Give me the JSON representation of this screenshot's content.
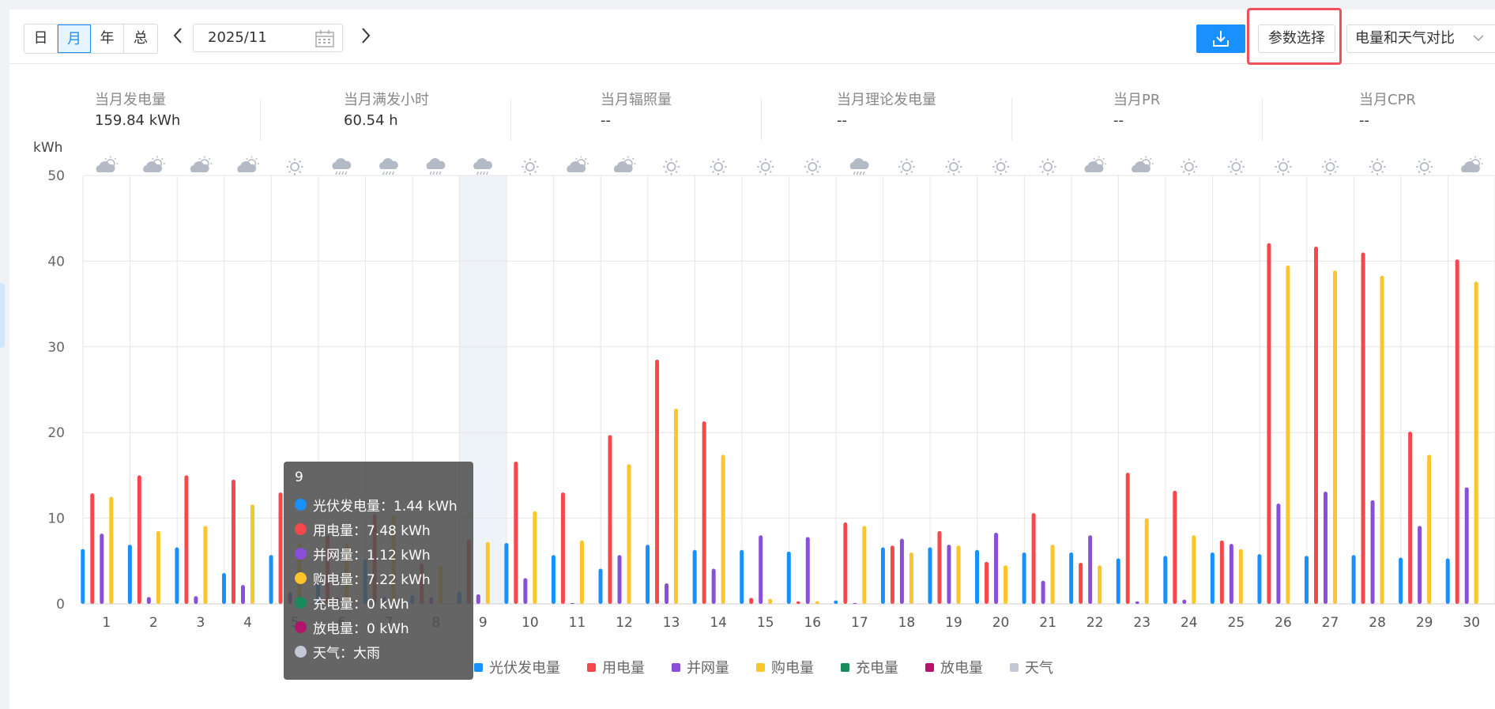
{
  "toolbar": {
    "period_tabs": [
      "日",
      "月",
      "年",
      "总"
    ],
    "active_tab": "月",
    "date_value": "2025/11",
    "param_button": "参数选择",
    "compare_select": "电量和天气对比"
  },
  "stats": [
    {
      "label": "当月发电量",
      "value": "159.84 kWh"
    },
    {
      "label": "当月满发小时",
      "value": "60.54 h"
    },
    {
      "label": "当月辐照量",
      "value": "--"
    },
    {
      "label": "当月理论发电量",
      "value": "--"
    },
    {
      "label": "当月PR",
      "value": "--"
    },
    {
      "label": "当月CPR",
      "value": "--"
    }
  ],
  "tooltip": {
    "title": "9",
    "rows": [
      {
        "text": "光伏发电量：1.44 kWh",
        "color": "#1890ff"
      },
      {
        "text": "用电量：7.48 kWh",
        "color": "#f5484d"
      },
      {
        "text": "并网量：1.12 kWh",
        "color": "#8a4fd8"
      },
      {
        "text": "购电量：7.22 kWh",
        "color": "#fbc52b"
      },
      {
        "text": "充电量：0 kWh",
        "color": "#1a8a5c"
      },
      {
        "text": "放电量：0 kWh",
        "color": "#b3136b"
      },
      {
        "text": "天气：大雨",
        "color": "#c4c8d4"
      }
    ]
  },
  "chart_data": {
    "type": "bar",
    "ylabel": "kWh",
    "ylim": [
      0,
      50
    ],
    "yticks": [
      0,
      10,
      20,
      30,
      40,
      50
    ],
    "grid": true,
    "legend_position": "bottom",
    "highlighted_category": "9",
    "categories": [
      "1",
      "2",
      "3",
      "4",
      "5",
      "6",
      "7",
      "8",
      "9",
      "10",
      "11",
      "12",
      "13",
      "14",
      "15",
      "16",
      "17",
      "18",
      "19",
      "20",
      "21",
      "22",
      "23",
      "24",
      "25",
      "26",
      "27",
      "28",
      "29",
      "30"
    ],
    "weather": [
      "partly-cloudy",
      "partly-cloudy",
      "partly-cloudy",
      "partly-cloudy",
      "sunny",
      "rain",
      "rain",
      "rain",
      "rain",
      "sunny",
      "partly-cloudy",
      "partly-cloudy",
      "sunny",
      "sunny",
      "sunny",
      "sunny",
      "rain",
      "sunny",
      "sunny",
      "sunny",
      "sunny",
      "partly-cloudy",
      "partly-cloudy",
      "sunny",
      "sunny",
      "sunny",
      "sunny",
      "sunny",
      "sunny",
      "partly-cloudy"
    ],
    "series": [
      {
        "name": "光伏发电量",
        "color": "#1890ff",
        "values": [
          6.4,
          6.9,
          6.6,
          3.6,
          5.7,
          2.4,
          5.2,
          1.0,
          1.44,
          7.1,
          5.7,
          4.1,
          6.9,
          6.3,
          6.3,
          6.1,
          0.4,
          6.6,
          6.6,
          6.3,
          6.0,
          6.0,
          5.3,
          5.6,
          6.0,
          5.8,
          5.6,
          5.7,
          5.4,
          5.3
        ]
      },
      {
        "name": "用电量",
        "color": "#f5484d",
        "values": [
          12.9,
          15.0,
          15.0,
          14.5,
          13.0,
          8.0,
          10.5,
          4.7,
          7.48,
          16.6,
          13.0,
          19.7,
          28.5,
          21.3,
          0.7,
          0.3,
          9.5,
          6.8,
          8.5,
          4.9,
          10.6,
          4.8,
          15.3,
          13.2,
          7.4,
          42.1,
          41.7,
          41.0,
          20.1,
          40.2
        ]
      },
      {
        "name": "并网量",
        "color": "#8a4fd8",
        "values": [
          8.2,
          0.8,
          0.9,
          2.2,
          1.4,
          0.8,
          0.8,
          0.8,
          1.12,
          3.0,
          0.1,
          5.7,
          2.4,
          4.1,
          8.0,
          7.8,
          0.1,
          7.6,
          6.9,
          8.3,
          2.7,
          8.0,
          0.3,
          0.5,
          7.0,
          11.7,
          13.1,
          12.1,
          9.1,
          13.6
        ]
      },
      {
        "name": "购电量",
        "color": "#fbc52b",
        "values": [
          12.5,
          8.5,
          9.1,
          11.6,
          7.0,
          7.0,
          10.3,
          4.5,
          7.22,
          10.8,
          7.4,
          16.3,
          22.8,
          17.4,
          0.6,
          0.3,
          9.1,
          6.0,
          6.8,
          4.5,
          6.9,
          4.5,
          10.0,
          8.0,
          6.4,
          39.5,
          38.9,
          38.3,
          17.4,
          37.6
        ]
      },
      {
        "name": "充电量",
        "color": "#1a8a5c",
        "values": [
          0,
          0,
          0,
          0,
          0,
          0,
          0,
          0,
          0,
          0,
          0,
          0,
          0,
          0,
          0,
          0,
          0,
          0,
          0,
          0,
          0,
          0,
          0,
          0,
          0,
          0,
          0,
          0,
          0,
          0
        ]
      },
      {
        "name": "放电量",
        "color": "#b3136b",
        "values": [
          0,
          0,
          0,
          0,
          0,
          0,
          0,
          0,
          0,
          0,
          0,
          0,
          0,
          0,
          0,
          0,
          0,
          0,
          0,
          0,
          0,
          0,
          0,
          0,
          0,
          0,
          0,
          0,
          0,
          0
        ]
      }
    ],
    "legend": [
      {
        "name": "光伏发电量",
        "color": "#1890ff"
      },
      {
        "name": "用电量",
        "color": "#f5484d"
      },
      {
        "name": "并网量",
        "color": "#8a4fd8"
      },
      {
        "name": "购电量",
        "color": "#fbc52b"
      },
      {
        "name": "充电量",
        "color": "#1a8a5c"
      },
      {
        "name": "放电量",
        "color": "#b3136b"
      },
      {
        "name": "天气",
        "color": "#c4c8d4"
      }
    ]
  }
}
